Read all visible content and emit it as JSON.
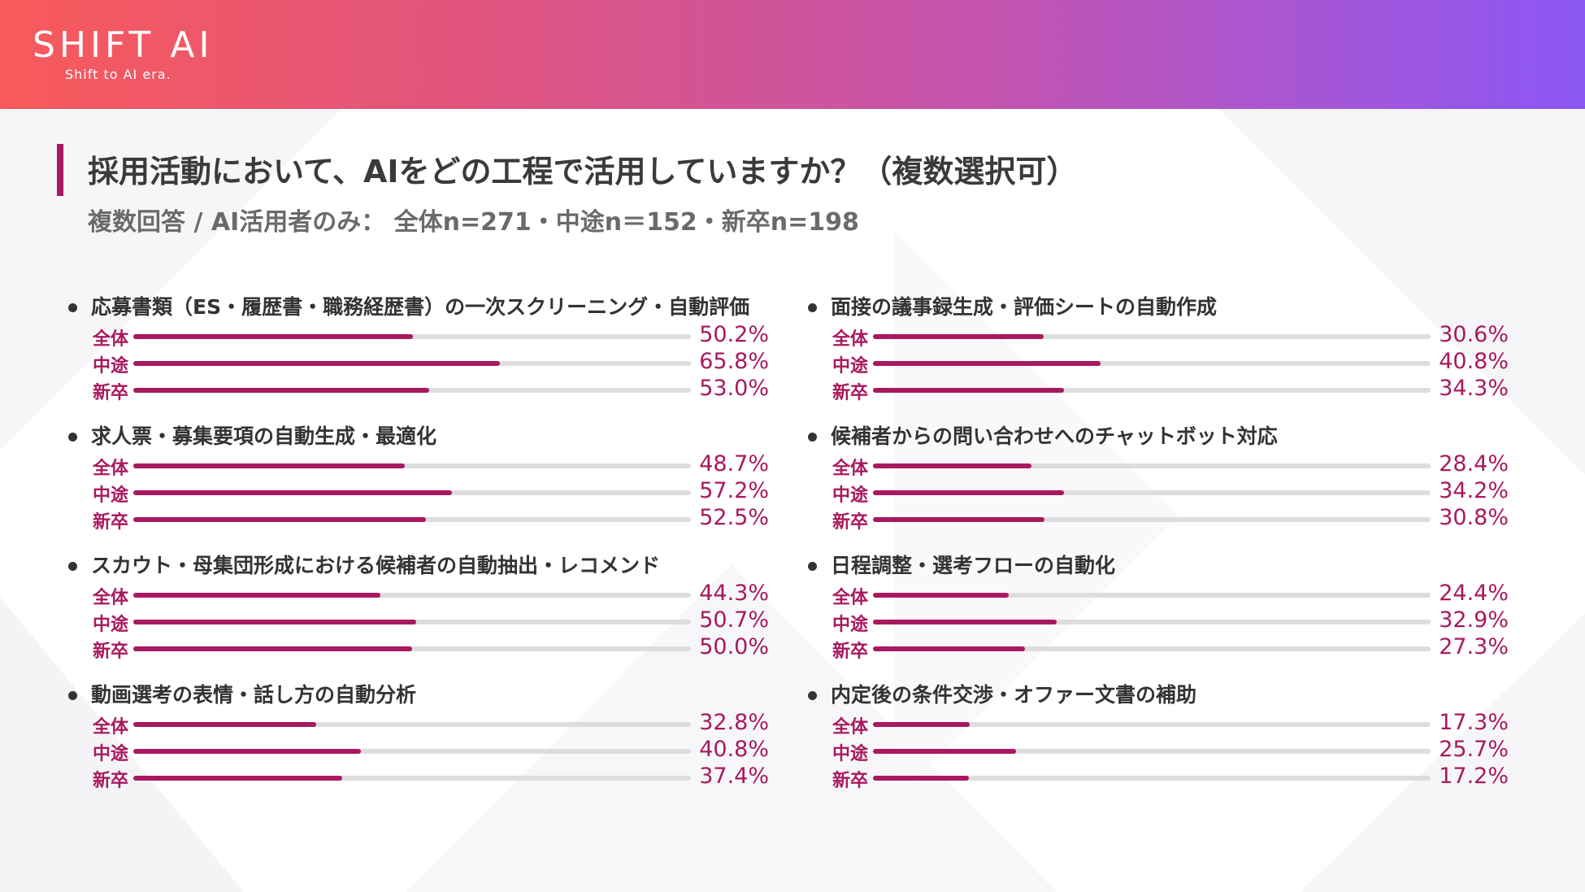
{
  "header": {
    "logo": "SHIFT AI",
    "tagline": "Shift to AI era.",
    "colors": [
      "#f85a5b",
      "#8c57f5"
    ]
  },
  "title": "採用活動において、AIをどの工程で活用していますか？（複数選択可）",
  "subtitle": "複数回答 / AI活用者のみ： 全体n=271・中途n＝152・新卒n=198",
  "chart_data": {
    "type": "bar",
    "orientation": "horizontal",
    "unit": "%",
    "xlim": [
      0,
      100
    ],
    "grid": false,
    "bar_color": "#a8195f",
    "series_names": [
      "全体",
      "中途",
      "新卒"
    ],
    "categories": [
      {
        "label": "応募書類（ES・履歴書・職務経歴書）の一次スクリーニング・自動評価",
        "values": [
          50.2,
          65.8,
          53.0
        ],
        "display": [
          "50.2%",
          "65.8%",
          "53.0%"
        ]
      },
      {
        "label": "求人票・募集要項の自動生成・最適化",
        "values": [
          48.7,
          57.2,
          52.5
        ],
        "display": [
          "48.7%",
          "57.2%",
          "52.5%"
        ]
      },
      {
        "label": "スカウト・母集団形成における候補者の自動抽出・レコメンド",
        "values": [
          44.3,
          50.7,
          50.0
        ],
        "display": [
          "44.3%",
          "50.7%",
          "50.0%"
        ]
      },
      {
        "label": "動画選考の表情・話し方の自動分析",
        "values": [
          32.8,
          40.8,
          37.4
        ],
        "display": [
          "32.8%",
          "40.8%",
          "37.4%"
        ]
      },
      {
        "label": "面接の議事録生成・評価シートの自動作成",
        "values": [
          30.6,
          40.8,
          34.3
        ],
        "display": [
          "30.6%",
          "40.8%",
          "34.3%"
        ]
      },
      {
        "label": "候補者からの問い合わせへのチャットボット対応",
        "values": [
          28.4,
          34.2,
          30.8
        ],
        "display": [
          "28.4%",
          "34.2%",
          "30.8%"
        ]
      },
      {
        "label": "日程調整・選考フローの自動化",
        "values": [
          24.4,
          32.9,
          27.3
        ],
        "display": [
          "24.4%",
          "32.9%",
          "27.3%"
        ]
      },
      {
        "label": "内定後の条件交渉・オファー文書の補助",
        "values": [
          17.3,
          25.7,
          17.2
        ],
        "display": [
          "17.3%",
          "25.7%",
          "17.2%"
        ]
      }
    ]
  }
}
